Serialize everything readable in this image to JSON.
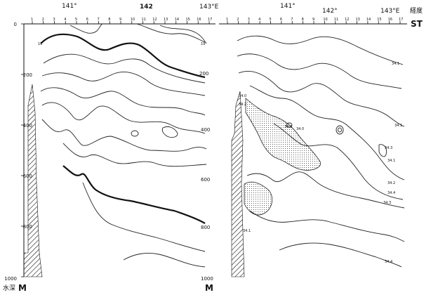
{
  "left_panel": {
    "longitudes": [
      "141°",
      "142",
      "143°E"
    ],
    "stations": [
      "1",
      "2",
      "3",
      "4",
      "5",
      "6",
      "7",
      "8",
      "9",
      "10",
      "11",
      "12",
      "13",
      "14",
      "15",
      "16",
      "17"
    ],
    "depth_ticks": [
      "0",
      "200",
      "400",
      "600",
      "800",
      "1000"
    ],
    "right_depth_ticks": [
      "200",
      "400",
      "600",
      "800",
      "1000"
    ],
    "contour_labels": [
      "15",
      "19"
    ],
    "depth_unit_cn": "水深",
    "depth_unit": "M",
    "right_unit": "M"
  },
  "right_panel": {
    "longitudes": [
      "141°",
      "142°",
      "143°E",
      "経度"
    ],
    "stations": [
      "1",
      "2",
      "3",
      "4",
      "5",
      "6",
      "7",
      "8",
      "9",
      "10",
      "11",
      "12",
      "13",
      "14",
      "15",
      "16",
      "17"
    ],
    "station_label": "ST",
    "contour_labels": [
      "34.1",
      "34.0",
      "34.2",
      "34.1",
      "34.0",
      "34.0",
      "34.3",
      "34.1",
      "34.2",
      "34.4",
      "34.3",
      "34.1",
      "34.4"
    ]
  }
}
